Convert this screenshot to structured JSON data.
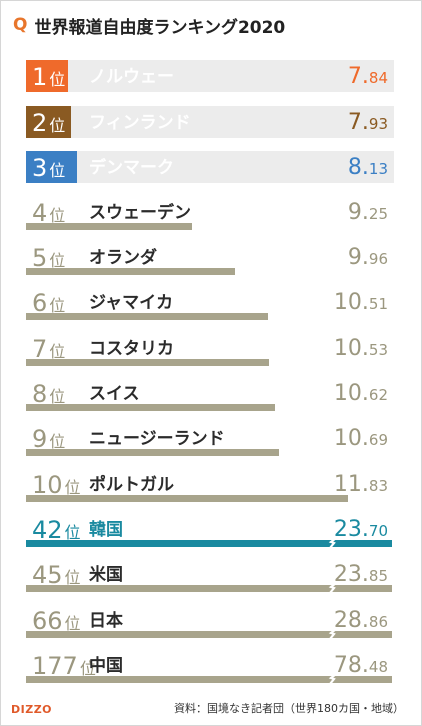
{
  "header": {
    "q_mark": "Q",
    "title": "世界報道自由度ランキング2020"
  },
  "footer": {
    "logo": "DIZZO",
    "source": "資料：国境なき記者団（世界180カ国・地域）"
  },
  "colors": {
    "first": "#ef6a2b",
    "second": "#8a5a22",
    "third": "#3b7fc4",
    "grey_bar": "#a8a48c",
    "korea_bar": "#1a8aa0",
    "track": "#ececec"
  },
  "chart_data": {
    "type": "bar",
    "title": "世界報道自由度ランキング2020",
    "xlabel": "",
    "ylabel": "",
    "rows": [
      {
        "rank": "1",
        "rank_suffix": "位",
        "country": "ノルウェー",
        "score_int": "7.",
        "score_dec": "84",
        "score": 7.84,
        "style": "top",
        "color": "#ef6a2b"
      },
      {
        "rank": "2",
        "rank_suffix": "位",
        "country": "フィンランド",
        "score_int": "7.",
        "score_dec": "93",
        "score": 7.93,
        "style": "top",
        "color": "#8a5a22"
      },
      {
        "rank": "3",
        "rank_suffix": "位",
        "country": "デンマーク",
        "score_int": "8.",
        "score_dec": "13",
        "score": 8.13,
        "style": "top",
        "color": "#3b7fc4"
      },
      {
        "rank": "4",
        "rank_suffix": "位",
        "country": "スウェーデン",
        "score_int": "9.",
        "score_dec": "25",
        "score": 9.25,
        "style": "grey"
      },
      {
        "rank": "5",
        "rank_suffix": "位",
        "country": "オランダ",
        "score_int": "9.",
        "score_dec": "96",
        "score": 9.96,
        "style": "grey"
      },
      {
        "rank": "6",
        "rank_suffix": "位",
        "country": "ジャマイカ",
        "score_int": "10.",
        "score_dec": "51",
        "score": 10.51,
        "style": "grey"
      },
      {
        "rank": "7",
        "rank_suffix": "位",
        "country": "コスタリカ",
        "score_int": "10.",
        "score_dec": "53",
        "score": 10.53,
        "style": "grey"
      },
      {
        "rank": "8",
        "rank_suffix": "位",
        "country": "スイス",
        "score_int": "10.",
        "score_dec": "62",
        "score": 10.62,
        "style": "grey"
      },
      {
        "rank": "9",
        "rank_suffix": "位",
        "country": "ニュージーランド",
        "score_int": "10.",
        "score_dec": "69",
        "score": 10.69,
        "style": "grey"
      },
      {
        "rank": "10",
        "rank_suffix": "位",
        "country": "ポルトガル",
        "score_int": "11.",
        "score_dec": "83",
        "score": 11.83,
        "style": "grey"
      },
      {
        "rank": "42",
        "rank_suffix": "位",
        "country": "韓国",
        "score_int": "23.",
        "score_dec": "70",
        "score": 23.7,
        "style": "kr",
        "broken": true
      },
      {
        "rank": "45",
        "rank_suffix": "位",
        "country": "米国",
        "score_int": "23.",
        "score_dec": "85",
        "score": 23.85,
        "style": "grey",
        "broken": true
      },
      {
        "rank": "66",
        "rank_suffix": "位",
        "country": "日本",
        "score_int": "28.",
        "score_dec": "86",
        "score": 28.86,
        "style": "grey",
        "broken": true
      },
      {
        "rank": "177",
        "rank_suffix": "位",
        "country": "中国",
        "score_int": "78.",
        "score_dec": "48",
        "score": 78.48,
        "style": "grey",
        "broken": true
      }
    ]
  }
}
